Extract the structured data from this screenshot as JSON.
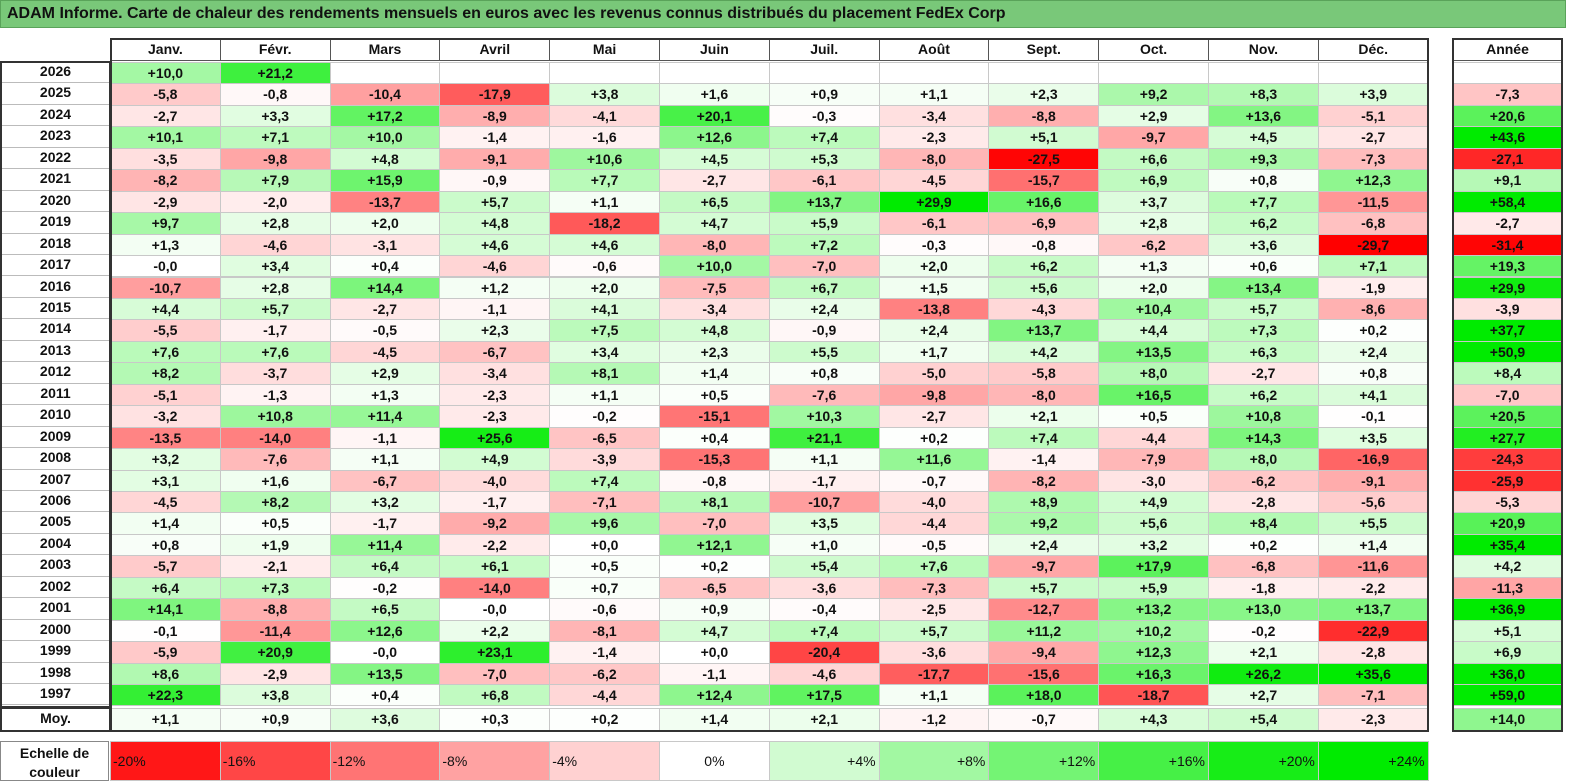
{
  "title": "ADAM Informe. Carte de chaleur des rendements mensuels en euros avec les revenus connus distribués du placement FedEx Corp",
  "chart_data": {
    "type": "heatmap",
    "months": [
      "Janv.",
      "Févr.",
      "Mars",
      "Avril",
      "Mai",
      "Juin",
      "Juil.",
      "Août",
      "Sept.",
      "Oct.",
      "Nov.",
      "Déc."
    ],
    "year_column_label": "Année",
    "rows": [
      {
        "year": "2026",
        "months": [
          "+10,0",
          "+21,2",
          "",
          "",
          "",
          "",
          "",
          "",
          "",
          "",
          "",
          ""
        ],
        "annual": ""
      },
      {
        "year": "2025",
        "months": [
          "-5,8",
          "-0,8",
          "-10,4",
          "-17,9",
          "+3,8",
          "+1,6",
          "+0,9",
          "+1,1",
          "+2,3",
          "+9,2",
          "+8,3",
          "+3,9"
        ],
        "annual": "-7,3"
      },
      {
        "year": "2024",
        "months": [
          "-2,7",
          "+3,3",
          "+17,2",
          "-8,9",
          "-4,1",
          "+20,1",
          "-0,3",
          "-3,4",
          "-8,8",
          "+2,9",
          "+13,6",
          "-5,1"
        ],
        "annual": "+20,6"
      },
      {
        "year": "2023",
        "months": [
          "+10,1",
          "+7,1",
          "+10,0",
          "-1,4",
          "-1,6",
          "+12,6",
          "+7,4",
          "-2,3",
          "+5,1",
          "-9,7",
          "+4,5",
          "-2,7"
        ],
        "annual": "+43,6"
      },
      {
        "year": "2022",
        "months": [
          "-3,5",
          "-9,8",
          "+4,8",
          "-9,1",
          "+10,6",
          "+4,5",
          "+5,3",
          "-8,0",
          "-27,5",
          "+6,6",
          "+9,3",
          "-7,3"
        ],
        "annual": "-27,1"
      },
      {
        "year": "2021",
        "months": [
          "-8,2",
          "+7,9",
          "+15,9",
          "-0,9",
          "+7,7",
          "-2,7",
          "-6,1",
          "-4,5",
          "-15,7",
          "+6,9",
          "+0,8",
          "+12,3"
        ],
        "annual": "+9,1"
      },
      {
        "year": "2020",
        "months": [
          "-2,9",
          "-2,0",
          "-13,7",
          "+5,7",
          "+1,1",
          "+6,5",
          "+13,7",
          "+29,9",
          "+16,6",
          "+3,7",
          "+7,7",
          "-11,5"
        ],
        "annual": "+58,4"
      },
      {
        "year": "2019",
        "months": [
          "+9,7",
          "+2,8",
          "+2,0",
          "+4,8",
          "-18,2",
          "+4,7",
          "+5,9",
          "-6,1",
          "-6,9",
          "+2,8",
          "+6,2",
          "-6,8"
        ],
        "annual": "-2,7"
      },
      {
        "year": "2018",
        "months": [
          "+1,3",
          "-4,6",
          "-3,1",
          "+4,6",
          "+4,6",
          "-8,0",
          "+7,2",
          "-0,3",
          "-0,8",
          "-6,2",
          "+3,6",
          "-29,7"
        ],
        "annual": "-31,4"
      },
      {
        "year": "2017",
        "months": [
          "-0,0",
          "+3,4",
          "+0,4",
          "-4,6",
          "-0,6",
          "+10,0",
          "-7,0",
          "+2,0",
          "+6,2",
          "+1,3",
          "+0,6",
          "+7,1"
        ],
        "annual": "+19,3"
      },
      {
        "year": "2016",
        "months": [
          "-10,7",
          "+2,8",
          "+14,4",
          "+1,2",
          "+2,0",
          "-7,5",
          "+6,7",
          "+1,5",
          "+5,6",
          "+2,0",
          "+13,4",
          "-1,9"
        ],
        "annual": "+29,9"
      },
      {
        "year": "2015",
        "months": [
          "+4,4",
          "+5,7",
          "-2,7",
          "-1,1",
          "+4,1",
          "-3,4",
          "+2,4",
          "-13,8",
          "-4,3",
          "+10,4",
          "+5,7",
          "-8,6"
        ],
        "annual": "-3,9"
      },
      {
        "year": "2014",
        "months": [
          "-5,5",
          "-1,7",
          "-0,5",
          "+2,3",
          "+7,5",
          "+4,8",
          "-0,9",
          "+2,4",
          "+13,7",
          "+4,4",
          "+7,3",
          "+0,2"
        ],
        "annual": "+37,7"
      },
      {
        "year": "2013",
        "months": [
          "+7,6",
          "+7,6",
          "-4,5",
          "-6,7",
          "+3,4",
          "+2,3",
          "+5,5",
          "+1,7",
          "+4,2",
          "+13,5",
          "+6,3",
          "+2,4"
        ],
        "annual": "+50,9"
      },
      {
        "year": "2012",
        "months": [
          "+8,2",
          "-3,7",
          "+2,9",
          "-3,4",
          "+8,1",
          "+1,4",
          "+0,8",
          "-5,0",
          "-5,8",
          "+8,0",
          "-2,7",
          "+0,8"
        ],
        "annual": "+8,4"
      },
      {
        "year": "2011",
        "months": [
          "-5,1",
          "-1,3",
          "+1,3",
          "-2,3",
          "+1,1",
          "+0,5",
          "-7,6",
          "-9,8",
          "-8,0",
          "+16,5",
          "+6,2",
          "+4,1"
        ],
        "annual": "-7,0"
      },
      {
        "year": "2010",
        "months": [
          "-3,2",
          "+10,8",
          "+11,4",
          "-2,3",
          "-0,2",
          "-15,1",
          "+10,3",
          "-2,7",
          "+2,1",
          "+0,5",
          "+10,8",
          "-0,1"
        ],
        "annual": "+20,5"
      },
      {
        "year": "2009",
        "months": [
          "-13,5",
          "-14,0",
          "-1,1",
          "+25,6",
          "-6,5",
          "+0,4",
          "+21,1",
          "+0,2",
          "+7,4",
          "-4,4",
          "+14,3",
          "+3,5"
        ],
        "annual": "+27,7"
      },
      {
        "year": "2008",
        "months": [
          "+3,2",
          "-7,6",
          "+1,1",
          "+4,9",
          "-3,9",
          "-15,3",
          "+1,1",
          "+11,6",
          "-1,4",
          "-7,9",
          "+8,0",
          "-16,9"
        ],
        "annual": "-24,3"
      },
      {
        "year": "2007",
        "months": [
          "+3,1",
          "+1,6",
          "-6,7",
          "-4,0",
          "+7,4",
          "-0,8",
          "-1,7",
          "-0,7",
          "-8,2",
          "-3,0",
          "-6,2",
          "-9,1"
        ],
        "annual": "-25,9"
      },
      {
        "year": "2006",
        "months": [
          "-4,5",
          "+8,2",
          "+3,2",
          "-1,7",
          "-7,1",
          "+8,1",
          "-10,7",
          "-4,0",
          "+8,9",
          "+4,9",
          "-2,8",
          "-5,6"
        ],
        "annual": "-5,3"
      },
      {
        "year": "2005",
        "months": [
          "+1,4",
          "+0,5",
          "-1,7",
          "-9,2",
          "+9,6",
          "-7,0",
          "+3,5",
          "-4,4",
          "+9,2",
          "+5,6",
          "+8,4",
          "+5,5"
        ],
        "annual": "+20,9"
      },
      {
        "year": "2004",
        "months": [
          "+0,8",
          "+1,9",
          "+11,4",
          "-2,2",
          "+0,0",
          "+12,1",
          "+1,0",
          "-0,5",
          "+2,4",
          "+3,2",
          "+0,2",
          "+1,4"
        ],
        "annual": "+35,4"
      },
      {
        "year": "2003",
        "months": [
          "-5,7",
          "-2,1",
          "+6,4",
          "+6,1",
          "+0,5",
          "+0,2",
          "+5,4",
          "+7,6",
          "-9,7",
          "+17,9",
          "-6,8",
          "-11,6"
        ],
        "annual": "+4,2"
      },
      {
        "year": "2002",
        "months": [
          "+6,4",
          "+7,3",
          "-0,2",
          "-14,0",
          "+0,7",
          "-6,5",
          "-3,6",
          "-7,3",
          "+5,7",
          "+5,9",
          "-1,8",
          "-2,2"
        ],
        "annual": "-11,3"
      },
      {
        "year": "2001",
        "months": [
          "+14,1",
          "-8,8",
          "+6,5",
          "-0,0",
          "-0,6",
          "+0,9",
          "-0,4",
          "-2,5",
          "-12,7",
          "+13,2",
          "+13,0",
          "+13,7"
        ],
        "annual": "+36,9"
      },
      {
        "year": "2000",
        "months": [
          "-0,1",
          "-11,4",
          "+12,6",
          "+2,2",
          "-8,1",
          "+4,7",
          "+7,4",
          "+5,7",
          "+11,2",
          "+10,2",
          "-0,2",
          "-22,9"
        ],
        "annual": "+5,1"
      },
      {
        "year": "1999",
        "months": [
          "-5,9",
          "+20,9",
          "-0,0",
          "+23,1",
          "-1,4",
          "+0,0",
          "-20,4",
          "-3,6",
          "-9,4",
          "+12,3",
          "+2,1",
          "-2,8"
        ],
        "annual": "+6,9"
      },
      {
        "year": "1998",
        "months": [
          "+8,6",
          "-2,9",
          "+13,5",
          "-7,0",
          "-6,2",
          "-1,1",
          "-4,6",
          "-17,7",
          "-15,6",
          "+16,3",
          "+26,2",
          "+35,6"
        ],
        "annual": "+36,0"
      },
      {
        "year": "1997",
        "months": [
          "+22,3",
          "+3,8",
          "+0,4",
          "+6,8",
          "-4,4",
          "+12,4",
          "+17,5",
          "+1,1",
          "+18,0",
          "-18,7",
          "+2,7",
          "-7,1"
        ],
        "annual": "+59,0"
      }
    ],
    "average": {
      "label": "Moy.",
      "months": [
        "+1,1",
        "+0,9",
        "+3,6",
        "+0,3",
        "+0,2",
        "+1,4",
        "+2,1",
        "-1,2",
        "-0,7",
        "+4,3",
        "+5,4",
        "-2,3"
      ],
      "annual": "+14,0"
    },
    "color_scale": {
      "label": "Echelle de couleur",
      "steps": [
        {
          "label": "-20%",
          "value": -20
        },
        {
          "label": "-16%",
          "value": -16
        },
        {
          "label": "-12%",
          "value": -12
        },
        {
          "label": "-8%",
          "value": -8
        },
        {
          "label": "-4%",
          "value": -4
        },
        {
          "label": "0%",
          "value": 0
        },
        {
          "label": "+4%",
          "value": 4
        },
        {
          "label": "+8%",
          "value": 8
        },
        {
          "label": "+12%",
          "value": 12
        },
        {
          "label": "+16%",
          "value": 16
        },
        {
          "label": "+20%",
          "value": 20
        },
        {
          "label": "+24%",
          "value": 24
        }
      ]
    }
  }
}
